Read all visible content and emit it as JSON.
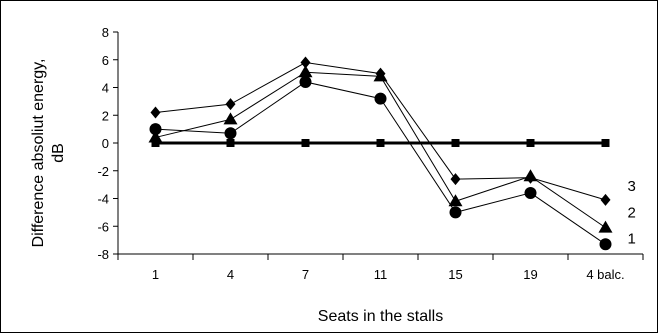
{
  "chart_data": {
    "type": "line",
    "categories": [
      "1",
      "4",
      "7",
      "11",
      "15",
      "19",
      "4 balc."
    ],
    "xlabel": "Seats in the stalls",
    "ylabel": "Difference absoliut energy, dB",
    "ylim": [
      -8,
      8
    ],
    "yticks": [
      -8,
      -6,
      -4,
      -2,
      0,
      2,
      4,
      6,
      8
    ],
    "grid": false,
    "series": [
      {
        "key": "ref",
        "marker": "square",
        "values": [
          0,
          0,
          0,
          0,
          0,
          0,
          0
        ]
      },
      {
        "key": "s1",
        "name": "1",
        "marker": "circle",
        "values": [
          1.0,
          0.7,
          4.4,
          3.2,
          -5.0,
          -3.6,
          -7.3
        ]
      },
      {
        "key": "s2",
        "name": "2",
        "marker": "triangle",
        "values": [
          0.4,
          1.7,
          5.1,
          4.8,
          -4.2,
          -2.4,
          -6.1
        ]
      },
      {
        "key": "s3",
        "name": "3",
        "marker": "diamond",
        "values": [
          2.2,
          2.8,
          5.8,
          5.0,
          -2.6,
          -2.5,
          -4.1
        ]
      }
    ]
  }
}
